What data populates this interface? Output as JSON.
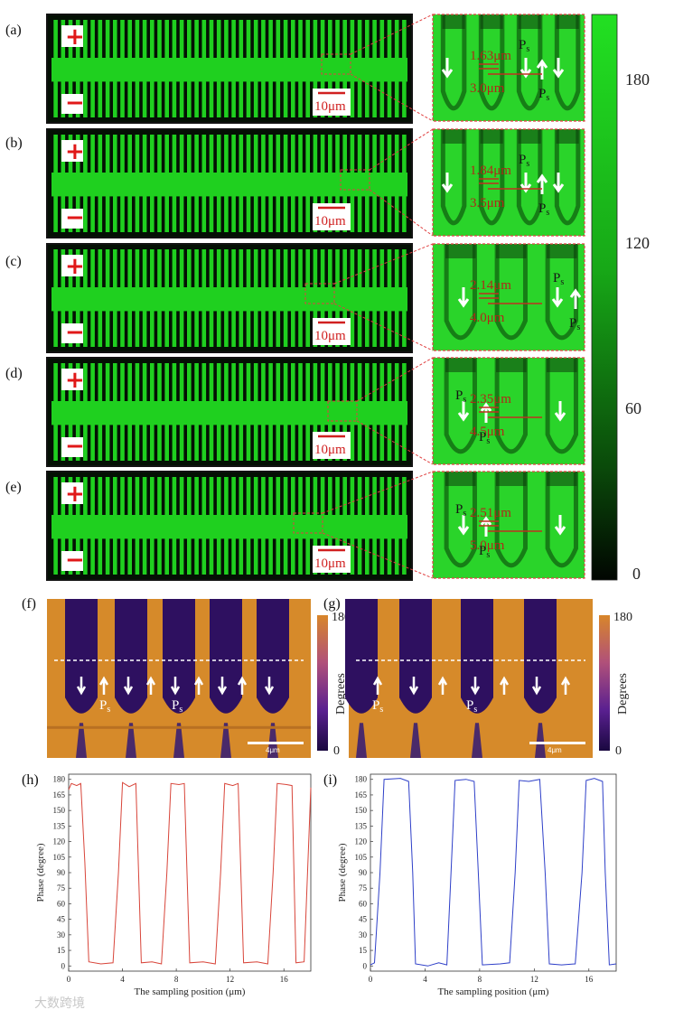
{
  "panel_labels": [
    "(a)",
    "(b)",
    "(c)",
    "(d)",
    "(e)",
    "(f)",
    "(g)",
    "(h)",
    "(i)"
  ],
  "polarity": {
    "plus": "+",
    "minus": "−"
  },
  "scale_bar_main": "10μm",
  "ps_label": "P",
  "ps_sub": "s",
  "zooms": [
    {
      "domain": "1.63μm",
      "period": "3.0μm"
    },
    {
      "domain": "1.84μm",
      "period": "3.5μm"
    },
    {
      "domain": "2.14μm",
      "period": "4.0μm"
    },
    {
      "domain": "2.35μm",
      "period": "4.5μm"
    },
    {
      "domain": "2.51μm",
      "period": "5.0μm"
    }
  ],
  "colorbar_main": {
    "ticks": [
      "180",
      "120",
      "60",
      "0"
    ]
  },
  "colorbar_pfm": {
    "top": "180",
    "bottom": "0",
    "title": "Degrees"
  },
  "pfm_scale": "4μm",
  "watermark": "大数跨境",
  "colors": {
    "green": "#1fd01f",
    "dark": "#041004",
    "orange": "#d68a2a",
    "purple": "#2e1060",
    "red_line": "#d8453a",
    "blue_line": "#2e3fc8"
  },
  "chart_data": [
    {
      "type": "line",
      "panel": "(h)",
      "xlabel": "The sampling position (μm)",
      "ylabel": "Phase (degree)",
      "xlim": [
        0,
        18
      ],
      "ylim": [
        -5,
        185
      ],
      "xticks": [
        "0",
        "4",
        "8",
        "12",
        "16"
      ],
      "yticks": [
        "0",
        "15",
        "30",
        "45",
        "60",
        "75",
        "90",
        "105",
        "120",
        "135",
        "150",
        "165",
        "180"
      ],
      "color": "#d8453a",
      "x": [
        0,
        0.2,
        0.6,
        0.9,
        1.2,
        1.5,
        2.4,
        3.3,
        3.7,
        4.0,
        4.5,
        5.0,
        5.4,
        6.2,
        6.9,
        7.3,
        7.6,
        8.2,
        8.6,
        9.0,
        10.0,
        10.9,
        11.3,
        11.6,
        12.2,
        12.6,
        13.0,
        14.0,
        14.8,
        15.2,
        15.5,
        16.2,
        16.6,
        16.9,
        17.5,
        18.0
      ],
      "y": [
        170,
        176,
        174,
        176,
        100,
        4,
        2,
        3,
        90,
        177,
        173,
        176,
        3,
        4,
        2,
        90,
        176,
        175,
        176,
        3,
        4,
        2,
        90,
        176,
        174,
        176,
        3,
        4,
        2,
        90,
        176,
        175,
        174,
        3,
        4,
        172
      ]
    },
    {
      "type": "line",
      "panel": "(i)",
      "xlabel": "The sampling position (μm)",
      "ylabel": "Phase (degree)",
      "xlim": [
        0,
        18
      ],
      "ylim": [
        -5,
        185
      ],
      "xticks": [
        "0",
        "4",
        "8",
        "12",
        "16"
      ],
      "yticks": [
        "0",
        "15",
        "30",
        "45",
        "60",
        "75",
        "90",
        "105",
        "120",
        "135",
        "150",
        "165",
        "180"
      ],
      "color": "#2e3fc8",
      "x": [
        0,
        0.3,
        0.7,
        1.0,
        2.2,
        2.8,
        3.1,
        3.3,
        4.2,
        5.0,
        5.6,
        5.9,
        6.2,
        7.0,
        7.6,
        7.9,
        8.2,
        9.5,
        10.2,
        10.6,
        10.9,
        11.6,
        12.4,
        12.8,
        13.1,
        14.0,
        15.0,
        15.5,
        15.8,
        16.4,
        17.0,
        17.2,
        17.5,
        18.0
      ],
      "y": [
        1,
        3,
        90,
        180,
        181,
        178,
        90,
        2,
        0,
        3,
        1,
        90,
        179,
        180,
        178,
        90,
        1,
        2,
        3,
        90,
        179,
        178,
        180,
        90,
        2,
        1,
        2,
        90,
        179,
        181,
        178,
        90,
        1,
        2
      ]
    }
  ]
}
